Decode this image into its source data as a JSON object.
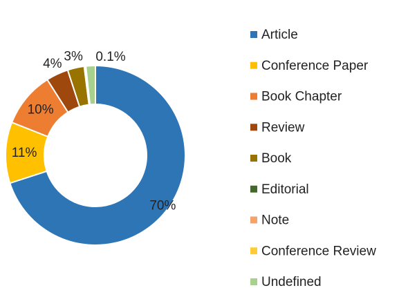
{
  "chart_data": {
    "type": "donut",
    "categories": [
      "Article",
      "Conference Paper",
      "Book Chapter",
      "Review",
      "Book",
      "Editorial",
      "Note",
      "Conference Review",
      "Undefined"
    ],
    "values": [
      70,
      11,
      10,
      4,
      3,
      0.1,
      0.1,
      0.1,
      1.7
    ],
    "value_labels": [
      "70%",
      "11%",
      "10%",
      "4%",
      "3%",
      "0.1%",
      null,
      null,
      null
    ],
    "colors": [
      "#2e75b6",
      "#ffc000",
      "#ed7d31",
      "#9e480e",
      "#997300",
      "#43682b",
      "#f4a46a",
      "#ffcd33",
      "#a9d18e"
    ],
    "legend": "right"
  }
}
